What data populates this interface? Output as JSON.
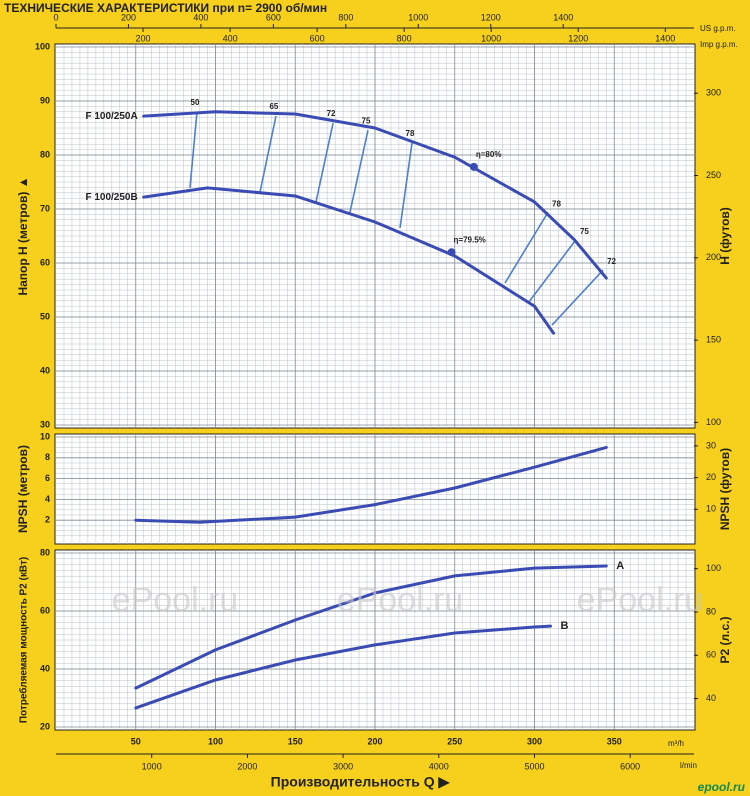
{
  "chart_data": [
    {
      "type": "line",
      "title": "ТЕХНИЧЕСКИЕ ХАРАКТЕРИСТИКИ при n= 2900 об/мин",
      "us_gpm": {
        "label": "US g.p.m.",
        "lim": [
          0,
          1761
        ],
        "ticks": [
          0,
          200,
          400,
          600,
          800,
          1000,
          1200,
          1400
        ]
      },
      "imp_gpm": {
        "label": "Imp g.p.m.",
        "lim": [
          0,
          1466
        ],
        "ticks": [
          200,
          400,
          600,
          800,
          1000,
          1200,
          1400
        ]
      },
      "xlim": [
        0,
        400
      ],
      "xticks": [
        50,
        100,
        150,
        200,
        250,
        300,
        350
      ],
      "x_minor": 5,
      "ylabel": "Напор  H  (метров)  ▲",
      "ylim": [
        30,
        100
      ],
      "yticks": [
        30,
        40,
        50,
        60,
        70,
        80,
        90,
        100
      ],
      "y_minor": 1,
      "y2label": "H  (футов)",
      "y2lim": [
        98.43,
        328.08
      ],
      "y2ticks": [
        100,
        150,
        200,
        250,
        300
      ],
      "series": [
        {
          "name": "F 100/250A",
          "color": "#3a4cb4",
          "x": [
            55,
            100,
            150,
            200,
            250,
            300,
            325,
            345
          ],
          "values": [
            87.2,
            88.0,
            87.6,
            85.0,
            79.6,
            71.3,
            64.3,
            57.2
          ]
        },
        {
          "name": "F 100/250B",
          "color": "#3a4cb4",
          "x": [
            55,
            95,
            150,
            200,
            250,
            300,
            312
          ],
          "values": [
            72.2,
            73.9,
            72.4,
            67.6,
            61.3,
            52.0,
            47.0
          ]
        }
      ],
      "efficiency_lines": [
        {
          "label": 50,
          "x": [
            88.4,
            84
          ],
          "values": [
            88.0,
            73.9
          ]
        },
        {
          "label": 65,
          "x": [
            137.9,
            127.9
          ],
          "values": [
            87.2,
            73.1
          ]
        },
        {
          "label": 72,
          "x": [
            173.7,
            163
          ],
          "values": [
            85.9,
            71.3
          ]
        },
        {
          "label": 75,
          "x": [
            195.6,
            184.3
          ],
          "values": [
            84.6,
            69.4
          ]
        },
        {
          "label": 78,
          "x": [
            223.2,
            215.7
          ],
          "values": [
            82.2,
            66.5
          ]
        },
        {
          "label": 78,
          "x": [
            308.5,
            281.5
          ],
          "values": [
            69.4,
            56.3
          ]
        },
        {
          "label": 75,
          "x": [
            326,
            296
          ],
          "values": [
            64.3,
            52.6
          ]
        },
        {
          "label": 72,
          "x": [
            343,
            311
          ],
          "values": [
            58.7,
            48.5
          ]
        }
      ],
      "efficiency_points": [
        {
          "label": "η=80%",
          "x": 262,
          "value": 77.8
        },
        {
          "label": "η=79.5%",
          "x": 248,
          "value": 62.0
        }
      ]
    },
    {
      "type": "line",
      "xlim": [
        0,
        400
      ],
      "xticks": [
        50,
        100,
        150,
        200,
        250,
        300,
        350
      ],
      "x_minor": 5,
      "ylabel": "NPSH   (метров)",
      "ylim": [
        0,
        10
      ],
      "yticks": [
        2,
        4,
        6,
        8,
        10
      ],
      "y_minor": 0.5,
      "y2label": "NPSH   (футов)",
      "y2lim": [
        0,
        32.81
      ],
      "y2ticks": [
        10,
        20,
        30
      ],
      "series": [
        {
          "color": "#3a4cb4",
          "x": [
            50,
            90,
            150,
            200,
            250,
            300,
            345
          ],
          "values": [
            2.0,
            1.8,
            2.3,
            3.5,
            5.1,
            7.1,
            9.0
          ]
        }
      ]
    },
    {
      "type": "line",
      "xlim": [
        0,
        400
      ],
      "xticks": [
        50,
        100,
        150,
        200,
        250,
        300,
        350
      ],
      "x_minor": 5,
      "x_label": "Производительность  Q  ▶",
      "x_unit": "m³/h",
      "lmin": {
        "label": "l/min",
        "lim": [
          0,
          6667
        ],
        "ticks": [
          1000,
          2000,
          3000,
          4000,
          5000,
          6000
        ]
      },
      "ylabel": "Потребляемая мощность  P2  (кВт)",
      "ylim": [
        20,
        80
      ],
      "yticks": [
        20,
        40,
        60,
        80
      ],
      "y_minor": 2,
      "y2label": "P2  (л.с.)",
      "y2lim": [
        26.82,
        107.28
      ],
      "y2ticks": [
        40,
        60,
        80,
        100
      ],
      "series": [
        {
          "name": "A",
          "color": "#3a4cb4",
          "x": [
            50,
            100,
            150,
            200,
            250,
            300,
            345
          ],
          "values": [
            33.4,
            46.6,
            56.9,
            66.2,
            72.1,
            74.8,
            75.5
          ]
        },
        {
          "name": "B",
          "color": "#3a4cb4",
          "x": [
            50,
            100,
            150,
            200,
            250,
            300,
            310
          ],
          "values": [
            26.6,
            36.2,
            43.1,
            48.3,
            52.4,
            54.5,
            54.8
          ]
        }
      ],
      "watermark": "ePool.ru",
      "logo": "epool.ru"
    }
  ]
}
